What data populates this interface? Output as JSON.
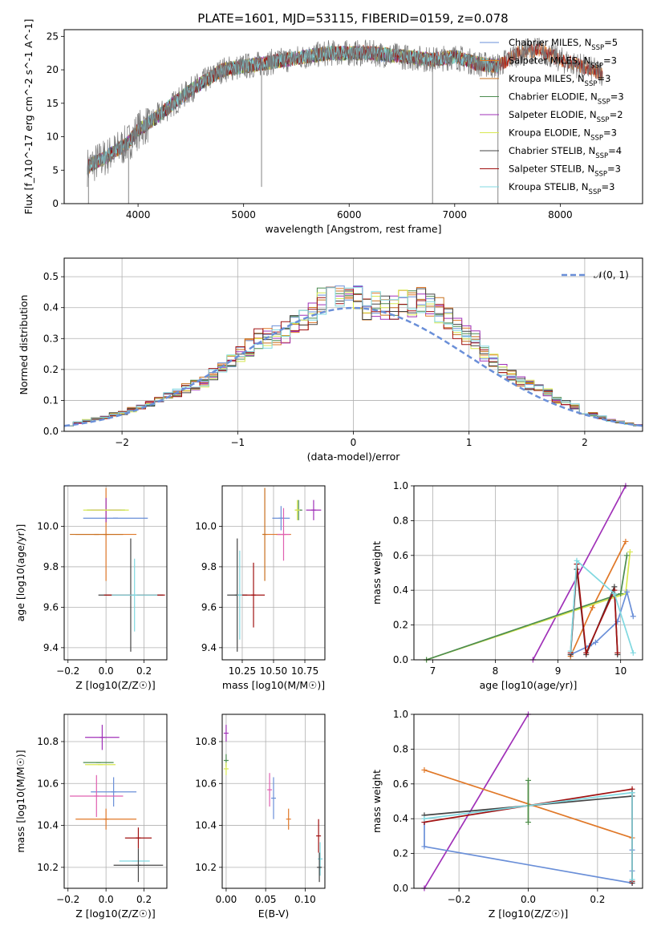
{
  "figure": {
    "title": "PLATE=1601, MJD=53115, FIBERID=0159, z=0.078"
  },
  "colors": {
    "chabrier_miles": "#6a8fd8",
    "salpeter_miles": "#e07828",
    "kroupa_miles": "#c8701e",
    "chabrier_elodie": "#4c8c50",
    "salpeter_elodie": "#a030b8",
    "kroupa_elodie": "#d8e850",
    "chabrier_stelib": "#444444",
    "salpeter_stelib": "#a01010",
    "kroupa_stelib": "#80d8e0",
    "normal_curve": "#6a8fd8",
    "grid": "#b0b0b0",
    "spectrum": "#777777"
  },
  "chart_data": [
    {
      "id": "spectrum",
      "type": "line",
      "xlabel": "wavelength [Angstrom, rest frame]",
      "ylabel": "Flux [f_λ10^-17 erg cm^-2 s^-1 A^-1]",
      "xlim": [
        3300,
        8780
      ],
      "ylim": [
        0,
        26
      ],
      "xticks": [
        4000,
        5000,
        6000,
        7000,
        8000
      ],
      "yticks": [
        0,
        5,
        10,
        15,
        20,
        25
      ],
      "grid": false,
      "legend_position": "top-right",
      "legend": [
        {
          "model": "Chabrier MILES",
          "n": "5"
        },
        {
          "model": "Salpeter MILES",
          "n": "3"
        },
        {
          "model": "Kroupa MILES",
          "n": "3"
        },
        {
          "model": "Chabrier ELODIE",
          "n": "3"
        },
        {
          "model": "Salpeter ELODIE",
          "n": "2"
        },
        {
          "model": "Kroupa ELODIE",
          "n": "3"
        },
        {
          "model": "Chabrier STELIB",
          "n": "4"
        },
        {
          "model": "Salpeter STELIB",
          "n": "3"
        },
        {
          "model": "Kroupa STELIB",
          "n": "3"
        }
      ],
      "continuum": {
        "x": [
          3520,
          3700,
          3900,
          4000,
          4100,
          4300,
          4500,
          4800,
          5000,
          5200,
          5400,
          5600,
          5800,
          6000,
          6200,
          6500,
          6800,
          7000,
          7200,
          7400,
          7600,
          7800,
          8000,
          8200,
          8400
        ],
        "y": [
          5.5,
          7,
          9,
          11,
          12,
          14.5,
          17,
          20,
          20.5,
          21,
          21.5,
          22,
          22.5,
          22.5,
          22.5,
          22,
          21.5,
          22,
          21,
          20.5,
          22.5,
          23,
          21.5,
          20.5,
          19.5
        ]
      },
      "spikes": [
        {
          "x": 5170,
          "y": 2.5
        },
        {
          "x": 6790,
          "y": 0
        },
        {
          "x": 3910,
          "y": 0
        },
        {
          "x": 7410,
          "y": 0
        },
        {
          "x": 3530,
          "y": 0
        }
      ]
    },
    {
      "id": "residual_hist",
      "type": "line",
      "xlabel": "(data-model)/error",
      "ylabel": "Normed distribution",
      "xlim": [
        -2.5,
        2.5
      ],
      "ylim": [
        0,
        0.56
      ],
      "xticks": [
        -2,
        -1,
        0,
        1,
        2
      ],
      "yticks": [
        0.0,
        0.1,
        0.2,
        0.3,
        0.4,
        0.5
      ],
      "grid": true,
      "legend_position": "top-right",
      "legend": [
        "𝒩(0, 1)"
      ],
      "bin_width": 0.1,
      "profile": [
        0.02,
        0.028,
        0.035,
        0.04,
        0.045,
        0.055,
        0.06,
        0.07,
        0.08,
        0.09,
        0.1,
        0.115,
        0.125,
        0.14,
        0.15,
        0.16,
        0.185,
        0.2,
        0.225,
        0.25,
        0.27,
        0.3,
        0.3,
        0.31,
        0.32,
        0.34,
        0.36,
        0.38,
        0.42,
        0.43,
        0.44,
        0.45,
        0.43,
        0.4,
        0.41,
        0.4,
        0.4,
        0.42,
        0.41,
        0.43,
        0.4,
        0.39,
        0.36,
        0.33,
        0.31,
        0.3,
        0.25,
        0.23,
        0.2,
        0.18,
        0.16,
        0.15,
        0.14,
        0.125,
        0.1,
        0.09,
        0.08,
        0.06,
        0.055,
        0.045,
        0.035,
        0.03,
        0.025,
        0.02
      ]
    },
    {
      "id": "age_vs_Z",
      "type": "scatter",
      "xlabel": "Z [log10(Z/Z☉)]",
      "ylabel": "age  [log10(age/yr)]",
      "xlim": [
        -0.22,
        0.32
      ],
      "ylim": [
        9.34,
        10.2
      ],
      "xticks": [
        -0.2,
        0.0,
        0.2
      ],
      "yticks": [
        9.4,
        9.6,
        9.8,
        10.0
      ],
      "grid": true,
      "points": [
        {
          "x": 0.05,
          "y": 10.04,
          "xerr": 0.17,
          "yerr": 0.0,
          "color": "#6a8fd8"
        },
        {
          "x": 0.0,
          "y": 9.96,
          "xerr": 0.16,
          "yerr": 0.23,
          "color": "#e07828"
        },
        {
          "x": -0.05,
          "y": 9.96,
          "xerr": 0.14,
          "yerr": 0.0,
          "color": "#c8701e"
        },
        {
          "x": 0.0,
          "y": 10.08,
          "xerr": 0.1,
          "yerr": 0.0,
          "color": "#4c8c50"
        },
        {
          "x": 0.0,
          "y": 10.08,
          "xerr": 0.08,
          "yerr": 0.06,
          "color": "#a030b8"
        },
        {
          "x": 0.0,
          "y": 10.08,
          "xerr": 0.12,
          "yerr": 0.0,
          "color": "#d8e850"
        },
        {
          "x": 0.13,
          "y": 9.66,
          "xerr": 0.17,
          "yerr": 0.28,
          "color": "#444444"
        },
        {
          "x": 0.15,
          "y": 9.66,
          "xerr": 0.16,
          "yerr": 0.0,
          "color": "#a01010"
        },
        {
          "x": 0.15,
          "y": 9.66,
          "xerr": 0.12,
          "yerr": 0.18,
          "color": "#80d8e0"
        }
      ]
    },
    {
      "id": "age_vs_mass",
      "type": "scatter",
      "xlabel": "mass [log10(M/M☉)]",
      "ylabel": "",
      "xlim": [
        10.09,
        10.91
      ],
      "ylim": [
        9.34,
        10.2
      ],
      "xticks": [
        10.25,
        10.5,
        10.75
      ],
      "yticks": [
        9.4,
        9.6,
        9.8,
        10.0
      ],
      "grid": true,
      "points": [
        {
          "x": 10.56,
          "y": 10.04,
          "xerr": 0.07,
          "yerr": 0.06,
          "color": "#6a8fd8"
        },
        {
          "x": 10.43,
          "y": 9.96,
          "xerr": 0.0,
          "yerr": 0.23,
          "color": "#c8701e"
        },
        {
          "x": 10.54,
          "y": 9.96,
          "xerr": 0.1,
          "yerr": 0.0,
          "color": "#e07828"
        },
        {
          "x": 10.58,
          "y": 9.96,
          "xerr": 0.05,
          "yerr": 0.13,
          "color": "#e060b0"
        },
        {
          "x": 10.7,
          "y": 10.08,
          "xerr": 0.03,
          "yerr": 0.05,
          "color": "#4c8c50"
        },
        {
          "x": 10.82,
          "y": 10.08,
          "xerr": 0.06,
          "yerr": 0.05,
          "color": "#a030b8"
        },
        {
          "x": 10.69,
          "y": 10.08,
          "xerr": 0.02,
          "yerr": 0.05,
          "color": "#d8e850"
        },
        {
          "x": 10.21,
          "y": 9.66,
          "xerr": 0.08,
          "yerr": 0.28,
          "color": "#444444"
        },
        {
          "x": 10.34,
          "y": 9.66,
          "xerr": 0.09,
          "yerr": 0.16,
          "color": "#a01010"
        },
        {
          "x": 10.23,
          "y": 9.66,
          "xerr": 0.0,
          "yerr": 0.22,
          "color": "#80d8e0"
        }
      ]
    },
    {
      "id": "weight_vs_age",
      "type": "line",
      "xlabel": "age  [log10(age/yr)]",
      "ylabel": "mass weight",
      "xlim": [
        6.7,
        10.35
      ],
      "ylim": [
        0,
        1.0
      ],
      "xticks": [
        7,
        8,
        9,
        10
      ],
      "yticks": [
        0.0,
        0.2,
        0.4,
        0.6,
        0.8,
        1.0
      ],
      "grid": true,
      "series": [
        {
          "color": "#a030b8",
          "x": [
            8.6,
            10.08
          ],
          "y": [
            0.0,
            1.0
          ]
        },
        {
          "color": "#e07828",
          "x": [
            9.2,
            9.55,
            10.08
          ],
          "y": [
            0.02,
            0.3,
            0.68
          ]
        },
        {
          "color": "#d8e850",
          "x": [
            6.9,
            10.08,
            10.15
          ],
          "y": [
            0.0,
            0.38,
            0.62
          ]
        },
        {
          "color": "#4c8c50",
          "x": [
            6.9,
            10.0,
            10.1
          ],
          "y": [
            0.0,
            0.38,
            0.6
          ]
        },
        {
          "color": "#6a8fd8",
          "x": [
            9.2,
            9.5,
            9.6,
            9.95,
            10.1,
            10.2
          ],
          "y": [
            0.03,
            0.08,
            0.1,
            0.22,
            0.39,
            0.25
          ]
        },
        {
          "color": "#444444",
          "x": [
            9.2,
            9.3,
            9.45,
            9.9,
            9.95
          ],
          "y": [
            0.03,
            0.52,
            0.03,
            0.42,
            0.03
          ]
        },
        {
          "color": "#a01010",
          "x": [
            9.2,
            9.3,
            9.45,
            9.9,
            9.95
          ],
          "y": [
            0.04,
            0.55,
            0.04,
            0.4,
            0.04
          ]
        },
        {
          "color": "#80d8e0",
          "x": [
            9.2,
            9.3,
            9.9,
            10.2
          ],
          "y": [
            0.05,
            0.57,
            0.38,
            0.04
          ]
        }
      ]
    },
    {
      "id": "mass_vs_Z",
      "type": "scatter",
      "xlabel": "Z [log10(Z/Z☉)]",
      "ylabel": "mass [log10(M/M☉)]",
      "xlim": [
        -0.22,
        0.32
      ],
      "ylim": [
        10.1,
        10.93
      ],
      "xticks": [
        -0.2,
        0.0,
        0.2
      ],
      "yticks": [
        10.2,
        10.4,
        10.6,
        10.8
      ],
      "grid": true,
      "points": [
        {
          "x": -0.02,
          "y": 10.82,
          "xerr": 0.09,
          "yerr": 0.06,
          "color": "#a030b8"
        },
        {
          "x": -0.04,
          "y": 10.7,
          "xerr": 0.08,
          "yerr": 0.0,
          "color": "#4c8c50"
        },
        {
          "x": -0.03,
          "y": 10.69,
          "xerr": 0.08,
          "yerr": 0.0,
          "color": "#d8e850"
        },
        {
          "x": 0.04,
          "y": 10.56,
          "xerr": 0.12,
          "yerr": 0.07,
          "color": "#6a8fd8"
        },
        {
          "x": -0.05,
          "y": 10.54,
          "xerr": 0.14,
          "yerr": 0.1,
          "color": "#e060b0"
        },
        {
          "x": 0.0,
          "y": 10.43,
          "xerr": 0.16,
          "yerr": 0.05,
          "color": "#e07828"
        },
        {
          "x": 0.17,
          "y": 10.34,
          "xerr": 0.07,
          "yerr": 0.05,
          "color": "#a01010"
        },
        {
          "x": 0.15,
          "y": 10.23,
          "xerr": 0.08,
          "yerr": 0.0,
          "color": "#80d8e0"
        },
        {
          "x": 0.17,
          "y": 10.21,
          "xerr": 0.13,
          "yerr": 0.08,
          "color": "#444444"
        }
      ]
    },
    {
      "id": "mass_vs_EBV",
      "type": "scatter",
      "xlabel": "E(B-V)",
      "ylabel": "",
      "xlim": [
        -0.005,
        0.125
      ],
      "ylim": [
        10.1,
        10.93
      ],
      "xticks": [
        0.0,
        0.05,
        0.1
      ],
      "yticks": [
        10.2,
        10.4,
        10.6,
        10.8
      ],
      "grid": true,
      "points": [
        {
          "x": 0.0,
          "y": 10.84,
          "xerr": 0.0,
          "yerr": 0.04,
          "color": "#a030b8"
        },
        {
          "x": 0.0,
          "y": 10.71,
          "xerr": 0.0,
          "yerr": 0.03,
          "color": "#4c8c50"
        },
        {
          "x": 0.0,
          "y": 10.67,
          "xerr": 0.0,
          "yerr": 0.03,
          "color": "#d8e850"
        },
        {
          "x": 0.06,
          "y": 10.53,
          "xerr": 0.0,
          "yerr": 0.1,
          "color": "#6a8fd8"
        },
        {
          "x": 0.055,
          "y": 10.57,
          "xerr": 0.0,
          "yerr": 0.08,
          "color": "#e060b0"
        },
        {
          "x": 0.079,
          "y": 10.43,
          "xerr": 0.0,
          "yerr": 0.05,
          "color": "#e07828"
        },
        {
          "x": 0.117,
          "y": 10.35,
          "xerr": 0.0,
          "yerr": 0.08,
          "color": "#a01010"
        },
        {
          "x": 0.119,
          "y": 10.24,
          "xerr": 0.0,
          "yerr": 0.08,
          "color": "#80d8e0"
        },
        {
          "x": 0.118,
          "y": 10.2,
          "xerr": 0.0,
          "yerr": 0.07,
          "color": "#444444"
        }
      ]
    },
    {
      "id": "weight_vs_Z",
      "type": "line",
      "xlabel": "Z [log10(Z/Z☉)]",
      "ylabel": "mass weight",
      "xlim": [
        -0.33,
        0.33
      ],
      "ylim": [
        0,
        1.0
      ],
      "xticks": [
        -0.2,
        0.0,
        0.2
      ],
      "yticks": [
        0.0,
        0.2,
        0.4,
        0.6,
        0.8,
        1.0
      ],
      "grid": true,
      "series": [
        {
          "color": "#a030b8",
          "x": [
            -0.3,
            0.0
          ],
          "y": [
            0.0,
            1.0
          ]
        },
        {
          "color": "#e07828",
          "x": [
            -0.3,
            0.3
          ],
          "y": [
            0.68,
            0.29
          ]
        },
        {
          "color": "#6a8fd8",
          "x": [
            -0.3,
            -0.3,
            0.3,
            0.3,
            0.3
          ],
          "y": [
            0.38,
            0.24,
            0.03,
            0.22,
            0.1
          ]
        },
        {
          "color": "#444444",
          "x": [
            -0.3,
            0.3,
            0.3,
            0.3
          ],
          "y": [
            0.42,
            0.53,
            0.03,
            0.55
          ]
        },
        {
          "color": "#a01010",
          "x": [
            -0.3,
            0.3,
            0.3
          ],
          "y": [
            0.38,
            0.57,
            0.04
          ]
        },
        {
          "color": "#80d8e0",
          "x": [
            -0.3,
            0.3,
            0.3
          ],
          "y": [
            0.4,
            0.55,
            0.05
          ]
        },
        {
          "color": "#d8e850",
          "x": [
            0.0,
            0.0
          ],
          "y": [
            0.38,
            0.62
          ]
        },
        {
          "color": "#4c8c50",
          "x": [
            0.0,
            0.0
          ],
          "y": [
            0.38,
            0.62
          ]
        }
      ]
    }
  ]
}
